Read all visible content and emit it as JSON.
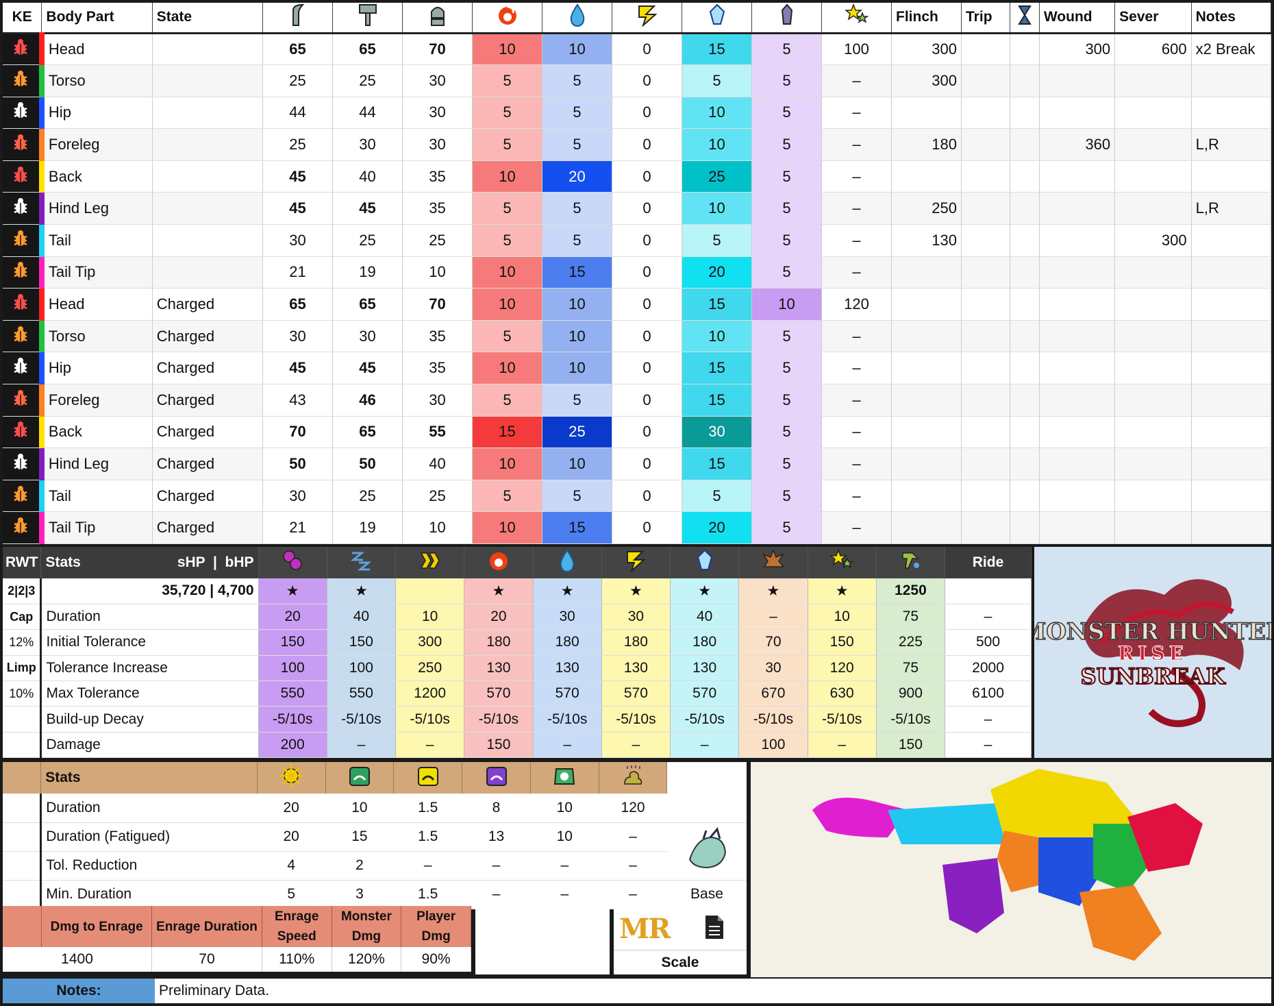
{
  "hitzones": {
    "headers": {
      "ke": "KE",
      "body_part": "Body Part",
      "state": "State",
      "flinch": "Flinch",
      "trip": "Trip",
      "wound": "Wound",
      "sever": "Sever",
      "notes": "Notes"
    },
    "header_icons": [
      "cutting-icon",
      "blunt-icon",
      "ammo-icon",
      "fire-icon",
      "water-icon",
      "thunder-icon",
      "ice-icon",
      "dragon-icon",
      "stun-icon",
      "hourglass-icon"
    ],
    "rows": [
      {
        "part": "Head",
        "state": "",
        "color": "#ff2020",
        "bug": "#ff4d4d",
        "sever": "100",
        "flinch": "300",
        "trip": "",
        "wound": "300",
        "sv": "600",
        "notes": "x2 Break",
        "cut": "65",
        "blunt": "65",
        "ammo": "70",
        "fire": "10",
        "water": "10",
        "thunder": "0",
        "ice": "15",
        "dragon": "5"
      },
      {
        "part": "Torso",
        "state": "",
        "color": "#20c040",
        "bug": "#ff9933",
        "sever": "–",
        "flinch": "300",
        "trip": "",
        "wound": "",
        "sv": "",
        "notes": "",
        "cut": "25",
        "blunt": "25",
        "ammo": "30",
        "fire": "5",
        "water": "5",
        "thunder": "0",
        "ice": "5",
        "dragon": "5"
      },
      {
        "part": "Hip",
        "state": "",
        "color": "#2050ff",
        "bug": "#ffffff",
        "sever": "–",
        "flinch": "",
        "trip": "",
        "wound": "",
        "sv": "",
        "notes": "",
        "cut": "44",
        "blunt": "44",
        "ammo": "30",
        "fire": "5",
        "water": "5",
        "thunder": "0",
        "ice": "10",
        "dragon": "5"
      },
      {
        "part": "Foreleg",
        "state": "",
        "color": "#ff8020",
        "bug": "#ff6644",
        "sever": "–",
        "flinch": "180",
        "trip": "",
        "wound": "360",
        "sv": "",
        "notes": "L,R",
        "cut": "25",
        "blunt": "30",
        "ammo": "30",
        "fire": "5",
        "water": "5",
        "thunder": "0",
        "ice": "10",
        "dragon": "5"
      },
      {
        "part": "Back",
        "state": "",
        "color": "#ffe000",
        "bug": "#ff4d4d",
        "sever": "–",
        "flinch": "",
        "trip": "",
        "wound": "",
        "sv": "",
        "notes": "",
        "cut": "45",
        "blunt": "40",
        "ammo": "35",
        "fire": "10",
        "water": "20",
        "thunder": "0",
        "ice": "25",
        "dragon": "5"
      },
      {
        "part": "Hind Leg",
        "state": "",
        "color": "#8020c0",
        "bug": "#ffffff",
        "sever": "–",
        "flinch": "250",
        "trip": "",
        "wound": "",
        "sv": "",
        "notes": "L,R",
        "cut": "45",
        "blunt": "45",
        "ammo": "35",
        "fire": "5",
        "water": "5",
        "thunder": "0",
        "ice": "10",
        "dragon": "5"
      },
      {
        "part": "Tail",
        "state": "",
        "color": "#20d0f0",
        "bug": "#ff9933",
        "sever": "–",
        "flinch": "130",
        "trip": "",
        "wound": "",
        "sv": "300",
        "notes": "",
        "cut": "30",
        "blunt": "25",
        "ammo": "25",
        "fire": "5",
        "water": "5",
        "thunder": "0",
        "ice": "5",
        "dragon": "5"
      },
      {
        "part": "Tail Tip",
        "state": "",
        "color": "#ff20c0",
        "bug": "#ff9933",
        "sever": "–",
        "flinch": "",
        "trip": "",
        "wound": "",
        "sv": "",
        "notes": "",
        "cut": "21",
        "blunt": "19",
        "ammo": "10",
        "fire": "10",
        "water": "15",
        "thunder": "0",
        "ice": "20",
        "dragon": "5"
      },
      {
        "part": "Head",
        "state": "Charged",
        "color": "#ff2020",
        "bug": "#ff4d4d",
        "sever": "120",
        "flinch": "",
        "trip": "",
        "wound": "",
        "sv": "",
        "notes": "",
        "cut": "65",
        "blunt": "65",
        "ammo": "70",
        "fire": "10",
        "water": "10",
        "thunder": "0",
        "ice": "15",
        "dragon": "10"
      },
      {
        "part": "Torso",
        "state": "Charged",
        "color": "#20c040",
        "bug": "#ff9933",
        "sever": "–",
        "flinch": "",
        "trip": "",
        "wound": "",
        "sv": "",
        "notes": "",
        "cut": "30",
        "blunt": "30",
        "ammo": "35",
        "fire": "5",
        "water": "10",
        "thunder": "0",
        "ice": "10",
        "dragon": "5"
      },
      {
        "part": "Hip",
        "state": "Charged",
        "color": "#2050ff",
        "bug": "#ffffff",
        "sever": "–",
        "flinch": "",
        "trip": "",
        "wound": "",
        "sv": "",
        "notes": "",
        "cut": "45",
        "blunt": "45",
        "ammo": "35",
        "fire": "10",
        "water": "10",
        "thunder": "0",
        "ice": "15",
        "dragon": "5"
      },
      {
        "part": "Foreleg",
        "state": "Charged",
        "color": "#ff8020",
        "bug": "#ff6644",
        "sever": "–",
        "flinch": "",
        "trip": "",
        "wound": "",
        "sv": "",
        "notes": "",
        "cut": "43",
        "blunt": "46",
        "ammo": "30",
        "fire": "5",
        "water": "5",
        "thunder": "0",
        "ice": "15",
        "dragon": "5"
      },
      {
        "part": "Back",
        "state": "Charged",
        "color": "#ffe000",
        "bug": "#ff4d4d",
        "sever": "–",
        "flinch": "",
        "trip": "",
        "wound": "",
        "sv": "",
        "notes": "",
        "cut": "70",
        "blunt": "65",
        "ammo": "55",
        "fire": "15",
        "water": "25",
        "thunder": "0",
        "ice": "30",
        "dragon": "5"
      },
      {
        "part": "Hind Leg",
        "state": "Charged",
        "color": "#8020c0",
        "bug": "#ffffff",
        "sever": "–",
        "flinch": "",
        "trip": "",
        "wound": "",
        "sv": "",
        "notes": "",
        "cut": "50",
        "blunt": "50",
        "ammo": "40",
        "fire": "10",
        "water": "10",
        "thunder": "0",
        "ice": "15",
        "dragon": "5"
      },
      {
        "part": "Tail",
        "state": "Charged",
        "color": "#20d0f0",
        "bug": "#ff9933",
        "sever": "–",
        "flinch": "",
        "trip": "",
        "wound": "",
        "sv": "",
        "notes": "",
        "cut": "30",
        "blunt": "25",
        "ammo": "25",
        "fire": "5",
        "water": "5",
        "thunder": "0",
        "ice": "5",
        "dragon": "5"
      },
      {
        "part": "Tail Tip",
        "state": "Charged",
        "color": "#ff20c0",
        "bug": "#ff9933",
        "sever": "–",
        "flinch": "",
        "trip": "",
        "wound": "",
        "sv": "",
        "notes": "",
        "cut": "21",
        "blunt": "19",
        "ammo": "10",
        "fire": "10",
        "water": "15",
        "thunder": "0",
        "ice": "20",
        "dragon": "5"
      }
    ]
  },
  "status": {
    "headers": {
      "rwt": "RWT",
      "stats": "Stats",
      "shp": "sHP",
      "bhp": "bHP",
      "sep": "|",
      "ride": "Ride"
    },
    "header_icons": [
      "poison-icon",
      "sleep-icon",
      "paralysis-icon",
      "fire-blight-icon",
      "water-blight-icon",
      "thunder-blight-icon",
      "ice-blight-icon",
      "blast-icon",
      "stun-icon",
      "exhaust-icon"
    ],
    "side": [
      "2|2|3",
      "Cap",
      "12%",
      "Limp",
      "10%",
      "",
      ""
    ],
    "hp": "35,720 | 4,700",
    "stars": [
      "★",
      "★",
      "",
      "★",
      "★",
      "★",
      "★",
      "★",
      "★",
      "1250",
      ""
    ],
    "rows": [
      {
        "label": "Duration",
        "values": [
          "20",
          "40",
          "10",
          "20",
          "30",
          "30",
          "40",
          "–",
          "10",
          "75",
          "–"
        ]
      },
      {
        "label": "Initial Tolerance",
        "values": [
          "150",
          "150",
          "300",
          "180",
          "180",
          "180",
          "180",
          "70",
          "150",
          "225",
          "500"
        ]
      },
      {
        "label": "Tolerance Increase",
        "values": [
          "100",
          "100",
          "250",
          "130",
          "130",
          "130",
          "130",
          "30",
          "120",
          "75",
          "2000"
        ]
      },
      {
        "label": "Max Tolerance",
        "values": [
          "550",
          "550",
          "1200",
          "570",
          "570",
          "570",
          "570",
          "670",
          "630",
          "900",
          "6100"
        ]
      },
      {
        "label": "Build-up Decay",
        "values": [
          "-5/10s",
          "-5/10s",
          "-5/10s",
          "-5/10s",
          "-5/10s",
          "-5/10s",
          "-5/10s",
          "-5/10s",
          "-5/10s",
          "-5/10s",
          "–"
        ]
      },
      {
        "label": "Damage",
        "values": [
          "200",
          "–",
          "–",
          "150",
          "–",
          "–",
          "–",
          "100",
          "–",
          "150",
          "–"
        ]
      }
    ],
    "col_colors": [
      "#c89cf2",
      "#c8dcf0",
      "#fdf7b0",
      "#f9c0c0",
      "#c8dcf8",
      "#fdf7b0",
      "#c4f4f8",
      "#fbe0c8",
      "#fdf7b0",
      "#d8ecd0",
      "#ffffff"
    ]
  },
  "logo": {
    "line1": "MONSTER HUNTER",
    "line2": "RISE",
    "line3": "SUNBREAK"
  },
  "ailments": {
    "stats": "Stats",
    "header_icons": [
      "flash-icon",
      "pitfall-trap-icon",
      "shock-trap-icon",
      "tranq-icon",
      "kinsect-trap-icon",
      "dung-icon"
    ],
    "rows": [
      {
        "label": "Duration",
        "values": [
          "20",
          "10",
          "1.5",
          "8",
          "10",
          "120"
        ]
      },
      {
        "label": "Duration (Fatigued)",
        "values": [
          "20",
          "15",
          "1.5",
          "13",
          "10",
          "–"
        ]
      },
      {
        "label": "Tol. Reduction",
        "values": [
          "4",
          "2",
          "–",
          "–",
          "–",
          "–"
        ]
      },
      {
        "label": "Min. Duration",
        "values": [
          "5",
          "3",
          "1.5",
          "–",
          "–",
          "–"
        ]
      }
    ],
    "base": "Base"
  },
  "rage": {
    "headers": [
      "Dmg to Enrage",
      "Enrage Duration",
      "Enrage Speed",
      "Monster Dmg",
      "Player Dmg"
    ],
    "values": [
      "1400",
      "70",
      "110%",
      "120%",
      "90%"
    ]
  },
  "mr": {
    "label": "MR",
    "scale": "Scale"
  },
  "notes": {
    "label": "Notes:",
    "text": "Preliminary Data."
  }
}
